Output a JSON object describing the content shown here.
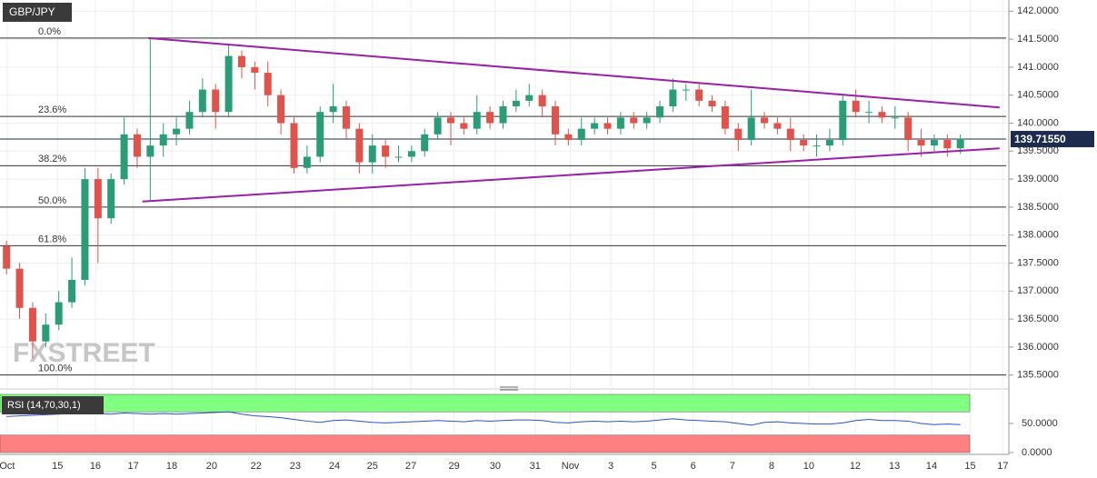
{
  "chart_data": [
    {
      "type": "candlestick",
      "title": "GBP/JPY",
      "watermark": "FXSTREET",
      "up_color": "#2a9d78",
      "down_color": "#e0524a",
      "x": [
        1,
        3,
        5,
        7,
        9,
        11,
        13,
        15,
        17,
        19,
        21,
        23,
        25,
        27,
        29,
        31,
        33,
        35,
        37,
        39,
        41,
        43,
        45,
        47,
        49,
        51,
        53,
        55,
        57,
        59,
        61,
        63,
        65,
        67,
        69,
        71,
        73,
        75,
        77,
        79,
        81,
        83,
        85,
        87,
        89,
        91,
        93,
        95,
        97,
        99,
        101,
        103,
        105,
        107,
        109,
        111,
        113,
        115,
        117,
        119,
        121,
        123,
        125,
        127,
        129,
        131,
        133,
        135,
        137,
        139,
        141,
        143,
        145,
        147
      ],
      "open": [
        137.8,
        137.4,
        136.7,
        136.1,
        136.4,
        136.8,
        137.2,
        139.0,
        138.3,
        139.0,
        139.8,
        139.4,
        139.6,
        139.8,
        139.9,
        140.2,
        140.6,
        140.2,
        141.2,
        141.0,
        140.9,
        140.5,
        140.0,
        139.2,
        139.4,
        140.2,
        140.3,
        139.9,
        139.3,
        139.6,
        139.4,
        139.4,
        139.5,
        139.8,
        140.1,
        140.0,
        139.9,
        140.2,
        140.0,
        140.3,
        140.4,
        140.5,
        140.3,
        139.8,
        139.7,
        139.9,
        140.0,
        139.9,
        140.1,
        140.0,
        140.1,
        140.3,
        140.6,
        140.6,
        140.4,
        140.3,
        139.9,
        139.7,
        140.1,
        140.0,
        139.9,
        139.7,
        139.6,
        139.6,
        139.7,
        140.4,
        140.2,
        140.2,
        140.1,
        140.1,
        139.7,
        139.6,
        139.7,
        139.55
      ],
      "high": [
        137.9,
        137.5,
        136.8,
        136.6,
        137.0,
        137.6,
        139.2,
        139.2,
        139.1,
        140.1,
        139.9,
        141.5,
        140.0,
        140.1,
        140.4,
        140.8,
        140.7,
        141.4,
        141.3,
        141.1,
        141.1,
        140.6,
        140.1,
        139.6,
        140.3,
        140.7,
        140.4,
        140.0,
        139.8,
        139.7,
        139.6,
        139.6,
        139.9,
        140.2,
        140.2,
        140.1,
        140.5,
        140.3,
        140.4,
        140.6,
        140.7,
        140.6,
        140.4,
        139.9,
        140.1,
        140.1,
        140.1,
        140.2,
        140.2,
        140.2,
        140.4,
        140.8,
        140.7,
        140.7,
        140.5,
        140.4,
        140.0,
        140.6,
        140.2,
        140.1,
        140.1,
        139.8,
        139.8,
        139.9,
        140.5,
        140.6,
        140.4,
        140.3,
        140.3,
        140.2,
        139.9,
        139.8,
        139.8,
        139.8
      ],
      "low": [
        137.3,
        136.5,
        135.8,
        136.0,
        136.3,
        136.7,
        137.1,
        137.5,
        138.2,
        138.9,
        139.2,
        138.6,
        139.4,
        139.6,
        139.8,
        140.1,
        139.9,
        140.1,
        140.8,
        140.6,
        140.3,
        139.8,
        139.1,
        139.1,
        139.3,
        140.0,
        139.7,
        139.1,
        139.1,
        139.2,
        139.3,
        139.3,
        139.4,
        139.7,
        139.6,
        139.8,
        139.8,
        139.9,
        139.9,
        140.2,
        140.3,
        140.1,
        139.6,
        139.6,
        139.6,
        139.8,
        139.8,
        139.8,
        139.9,
        139.9,
        140.0,
        140.2,
        140.4,
        140.3,
        140.2,
        139.8,
        139.5,
        139.6,
        139.9,
        139.8,
        139.5,
        139.5,
        139.4,
        139.5,
        139.6,
        140.1,
        140.0,
        140.0,
        139.9,
        139.5,
        139.4,
        139.5,
        139.4,
        139.45
      ],
      "close": [
        137.4,
        136.7,
        136.1,
        136.4,
        136.8,
        137.2,
        139.0,
        138.3,
        139.0,
        139.8,
        139.4,
        139.6,
        139.8,
        139.9,
        140.2,
        140.6,
        140.2,
        141.2,
        141.0,
        140.9,
        140.5,
        140.0,
        139.2,
        139.4,
        140.2,
        140.3,
        139.9,
        139.3,
        139.6,
        139.4,
        139.4,
        139.5,
        139.8,
        140.1,
        140.0,
        139.9,
        140.2,
        140.0,
        140.3,
        140.4,
        140.5,
        140.3,
        139.8,
        139.7,
        139.9,
        140.0,
        139.9,
        140.1,
        140.0,
        140.1,
        140.3,
        140.6,
        140.6,
        140.4,
        140.3,
        139.9,
        139.7,
        140.1,
        140.0,
        139.9,
        139.7,
        139.6,
        139.6,
        139.7,
        140.4,
        140.2,
        140.2,
        140.1,
        140.1,
        139.7,
        139.6,
        139.7,
        139.55,
        139.72
      ],
      "xlim": [
        0,
        154
      ],
      "ylim": [
        135.3,
        142.2
      ],
      "yticks": [
        {
          "value": 142,
          "label": "142.0000"
        },
        {
          "value": 141.5,
          "label": "141.5000"
        },
        {
          "value": 141,
          "label": "141.0000"
        },
        {
          "value": 140.5,
          "label": "140.5000"
        },
        {
          "value": 140,
          "label": "140.0000"
        },
        {
          "value": 139.5,
          "label": "139.5000"
        },
        {
          "value": 139,
          "label": "139.0000"
        },
        {
          "value": 138.5,
          "label": "138.5000"
        },
        {
          "value": 138,
          "label": "138.0000"
        },
        {
          "value": 137.5,
          "label": "137.5000"
        },
        {
          "value": 137,
          "label": "137.0000"
        },
        {
          "value": 136.5,
          "label": "136.5000"
        },
        {
          "value": 136,
          "label": "136.0000"
        },
        {
          "value": 135.5,
          "label": "135.5000"
        }
      ],
      "fib_levels": [
        {
          "label": "0.0%",
          "value": 141.52
        },
        {
          "label": "23.6%",
          "value": 140.12
        },
        {
          "label": "38.2%",
          "value": 139.24
        },
        {
          "label": "50.0%",
          "value": 138.5
        },
        {
          "label": "61.8%",
          "value": 137.81
        },
        {
          "label": "100.0%",
          "value": 135.5
        }
      ],
      "trendline_color": "#9b1fa8",
      "trendlines": [
        {
          "x": [
            22.7,
            153
          ],
          "y": [
            141.52,
            140.28
          ]
        },
        {
          "x": [
            21.8,
            153
          ],
          "y": [
            138.6,
            139.55
          ]
        }
      ],
      "last_price": {
        "value": 139.7155,
        "label": "139.71550",
        "color": "#1d2b4f"
      }
    },
    {
      "type": "line",
      "title": "RSI (14,70,30,1)",
      "color": "#2f4fd0",
      "x": [
        1,
        3,
        5,
        7,
        9,
        11,
        13,
        15,
        17,
        19,
        21,
        23,
        25,
        27,
        29,
        31,
        33,
        35,
        37,
        39,
        41,
        43,
        45,
        47,
        49,
        51,
        53,
        55,
        57,
        59,
        61,
        63,
        65,
        67,
        69,
        71,
        73,
        75,
        77,
        79,
        81,
        83,
        85,
        87,
        89,
        91,
        93,
        95,
        97,
        99,
        101,
        103,
        105,
        107,
        109,
        111,
        113,
        115,
        117,
        119,
        121,
        123,
        125,
        127,
        129,
        131,
        133,
        135,
        137,
        139,
        141,
        143,
        145,
        147
      ],
      "values": [
        62,
        63,
        64,
        65,
        66,
        67,
        68,
        67,
        66,
        68,
        67,
        66,
        67,
        66,
        67,
        68,
        69,
        70,
        66,
        63,
        62,
        60,
        57,
        54,
        52,
        55,
        56,
        54,
        52,
        51,
        52,
        53,
        54,
        55,
        54,
        53,
        55,
        54,
        55,
        56,
        56,
        55,
        52,
        51,
        53,
        54,
        53,
        54,
        53,
        54,
        56,
        58,
        56,
        55,
        54,
        53,
        50,
        47,
        52,
        53,
        51,
        50,
        49,
        49,
        51,
        55,
        57,
        55,
        55,
        54,
        50,
        48,
        49,
        48
      ],
      "xlim": [
        0,
        154
      ],
      "ylim": [
        0,
        100
      ],
      "yticks": [
        {
          "value": 50,
          "label": "50.0000"
        },
        {
          "value": 0,
          "label": "0.0000"
        }
      ],
      "bands": [
        {
          "from": 70,
          "to": 100,
          "color": "#80ff80"
        },
        {
          "from": 0,
          "to": 30,
          "color": "#ff8080"
        }
      ],
      "xticks": [
        {
          "value": 1.1,
          "label": "Oct"
        },
        {
          "value": 8.8,
          "label": "15"
        },
        {
          "value": 14.6,
          "label": "16"
        },
        {
          "value": 20.4,
          "label": "17"
        },
        {
          "value": 26.3,
          "label": "18"
        },
        {
          "value": 32.4,
          "label": "20"
        },
        {
          "value": 39.2,
          "label": "22"
        },
        {
          "value": 45.2,
          "label": "23"
        },
        {
          "value": 51.2,
          "label": "24"
        },
        {
          "value": 57,
          "label": "25"
        },
        {
          "value": 62.9,
          "label": "27"
        },
        {
          "value": 69.5,
          "label": "29"
        },
        {
          "value": 75.8,
          "label": "30"
        },
        {
          "value": 81.9,
          "label": "31"
        },
        {
          "value": 87.3,
          "label": "Nov"
        },
        {
          "value": 93.5,
          "label": "3"
        },
        {
          "value": 100.1,
          "label": "5"
        },
        {
          "value": 106.1,
          "label": "6"
        },
        {
          "value": 112.1,
          "label": "7"
        },
        {
          "value": 118.1,
          "label": "8"
        },
        {
          "value": 123.8,
          "label": "10"
        },
        {
          "value": 130.9,
          "label": "12"
        },
        {
          "value": 136.9,
          "label": "13"
        },
        {
          "value": 142.6,
          "label": "14"
        },
        {
          "value": 148.5,
          "label": "15"
        },
        {
          "value": 153.5,
          "label": "17"
        }
      ]
    }
  ]
}
